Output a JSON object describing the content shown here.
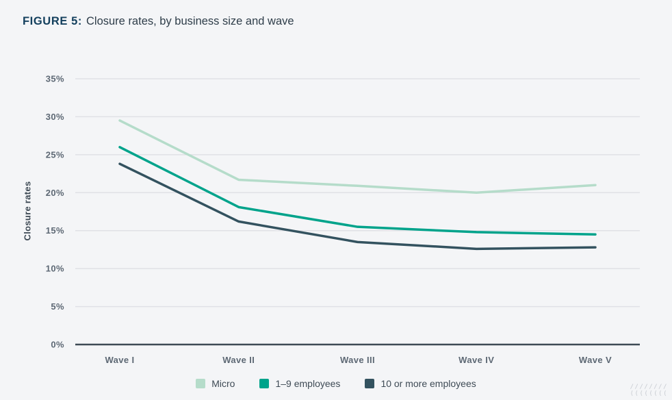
{
  "title": {
    "prefix": "FIGURE 5:",
    "text": "Closure rates, by business size and wave"
  },
  "chart_data": {
    "type": "line",
    "categories": [
      "Wave I",
      "Wave II",
      "Wave III",
      "Wave IV",
      "Wave V"
    ],
    "series": [
      {
        "name": "Micro",
        "color": "#b5dcca",
        "values": [
          29.5,
          21.7,
          20.9,
          20.0,
          21.0
        ]
      },
      {
        "name": "1–9 employees",
        "color": "#00a38b",
        "values": [
          26.0,
          18.1,
          15.5,
          14.8,
          14.5
        ]
      },
      {
        "name": "10 or more employees",
        "color": "#33525f",
        "values": [
          23.8,
          16.2,
          13.5,
          12.6,
          12.8
        ]
      }
    ],
    "ylabel": "Closure rates",
    "xlabel": "",
    "ylim": [
      0,
      35
    ],
    "ytick_step": 5,
    "ytick_labels": [
      "0%",
      "5%",
      "10%",
      "15%",
      "20%",
      "25%",
      "30%",
      "35%"
    ],
    "grid": true,
    "legend_position": "bottom",
    "colors": {
      "background": "#f4f5f7",
      "gridline": "#e0e1e6",
      "axis_line": "#3e4a55",
      "tick_text": "#5d6874",
      "title_prefix": "#14405e",
      "title_text": "#2e3d49"
    }
  },
  "decoration": {
    "row1": "////////",
    "row2": "(((((((("
  }
}
